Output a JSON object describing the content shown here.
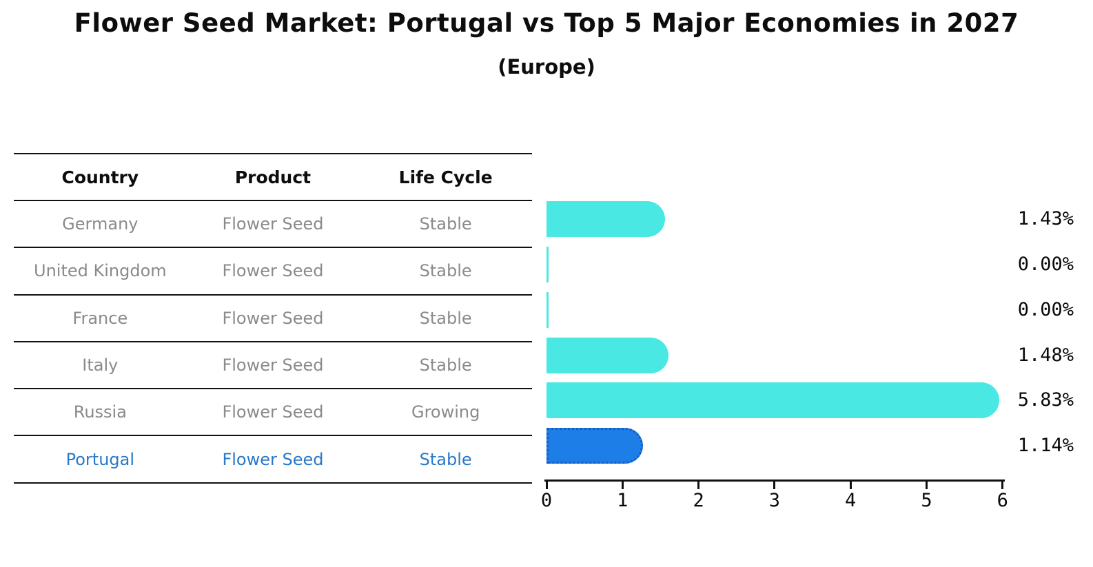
{
  "title": "Flower Seed Market: Portugal vs Top 5 Major Economies in 2027",
  "subtitle": "(Europe)",
  "table": {
    "headers": [
      "Country",
      "Product",
      "Life Cycle"
    ],
    "rows": [
      {
        "country": "Germany",
        "product": "Flower Seed",
        "life_cycle": "Stable",
        "highlight": false
      },
      {
        "country": "United Kingdom",
        "product": "Flower Seed",
        "life_cycle": "Stable",
        "highlight": false
      },
      {
        "country": "France",
        "product": "Flower Seed",
        "life_cycle": "Stable",
        "highlight": false
      },
      {
        "country": "Italy",
        "product": "Flower Seed",
        "life_cycle": "Stable",
        "highlight": false
      },
      {
        "country": "Russia",
        "product": "Flower Seed",
        "life_cycle": "Growing",
        "highlight": false
      },
      {
        "country": "Portugal",
        "product": "Flower Seed",
        "life_cycle": "Stable",
        "highlight": true
      }
    ]
  },
  "chart_data": {
    "type": "bar",
    "orientation": "horizontal",
    "categories": [
      "Germany",
      "United Kingdom",
      "France",
      "Italy",
      "Russia",
      "Portugal"
    ],
    "values": [
      1.43,
      0.0,
      0.0,
      1.48,
      5.83,
      1.14
    ],
    "value_labels": [
      "1.43%",
      "0.00%",
      "0.00%",
      "1.48%",
      "5.83%",
      "1.14%"
    ],
    "highlight_index": 5,
    "x_ticks": [
      "0",
      "1",
      "2",
      "3",
      "4",
      "5",
      "6"
    ],
    "xlim": [
      0,
      6
    ],
    "grid": false,
    "legend": false,
    "title": "Flower Seed Market: Portugal vs Top 5 Major Economies in 2027 (Europe)",
    "xlabel": "",
    "ylabel": ""
  },
  "colors": {
    "bar_default": "#4AE8E2",
    "bar_highlight_fill": "#1E7EE7",
    "bar_highlight_border": "#155CC0",
    "highlight_text": "#2878C8",
    "muted_text": "#8A8A8A",
    "axis": "#111111",
    "title_text": "#0D0D0D"
  }
}
